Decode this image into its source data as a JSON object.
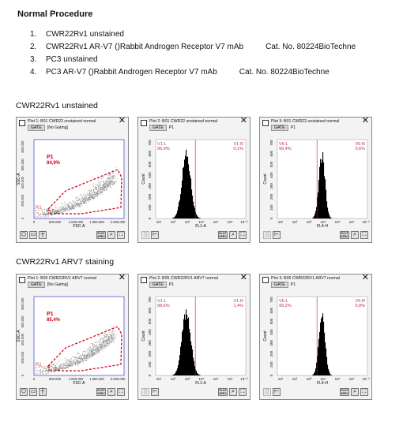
{
  "document": {
    "title": "Normal Procedure",
    "procedure": [
      {
        "num": "1.",
        "text": "CWR22Rv1 unstained",
        "cat": ""
      },
      {
        "num": "2.",
        "text": "CWR22Rv1 AR-V7 ()Rabbit Androgen Receptor V7 mAb",
        "cat": "Cat. No. 80224BioTechne"
      },
      {
        "num": "3.",
        "text": "PC3 unstained",
        "cat": ""
      },
      {
        "num": "4.",
        "text": "PC3 AR-V7 ()Rabbit Androgen Receptor V7 mAb",
        "cat": "Cat. No. 80224BioTechne"
      }
    ],
    "sections": [
      {
        "label": "CWR22Rv1 unstained"
      },
      {
        "label": "CWR22Rv1 ARV7 staining"
      }
    ]
  },
  "colors": {
    "gate": "#d0021b",
    "axis": "#1a1ac8",
    "hist": "#000000",
    "marker": "#c02040"
  },
  "panels": [
    {
      "title": "Plot 1: B01 CWR22 unstained normal",
      "gate_btn": "GATE",
      "gate_value": "[No Gating]",
      "chart_data": {
        "type": "scatter",
        "xlabel": "FSC-A",
        "ylabel": "SSC-A",
        "xticks": [
          "0",
          "500.000",
          "1.000.000",
          "1.500.000",
          "2.000.000"
        ],
        "yticks": [
          "0",
          "200.000",
          "400.000",
          "600.000",
          "800.000"
        ],
        "gates": [
          {
            "name": "P1",
            "value": "84,9%"
          },
          {
            "name": "R1",
            "value": ""
          }
        ]
      },
      "tools": {
        "spec": "PLOT SPEC"
      }
    },
    {
      "title": "Plot 2: B01 CWR22 unstained normal",
      "gate_btn": "GATE",
      "gate_value": "P1",
      "chart_data": {
        "type": "histogram",
        "xlabel": "FL1-A",
        "ylabel": "Count",
        "yticks": [
          "0",
          "100",
          "200",
          "300",
          "400",
          "500",
          "600",
          "700"
        ],
        "xticks": [
          "10¹",
          "10²",
          "10³",
          "10⁴",
          "10⁵",
          "10⁶",
          "10⁷.²"
        ],
        "markers": [
          {
            "name": "V1-L",
            "value": "99,9%"
          },
          {
            "name": "V1-R",
            "value": "0,1%"
          }
        ]
      },
      "tools": {
        "spec": "PLOT SPEC"
      }
    },
    {
      "title": "Plot 3: B01 CWR22 unstained normal",
      "gate_btn": "GATE",
      "gate_value": "P1",
      "chart_data": {
        "type": "histogram",
        "xlabel": "FL4-H",
        "ylabel": "Count",
        "yticks": [
          "0",
          "100",
          "200",
          "300",
          "400",
          "500",
          "600",
          "700"
        ],
        "xticks": [
          "10¹",
          "10²",
          "10³",
          "10⁴",
          "10⁵",
          "10⁶",
          "10⁷.²"
        ],
        "markers": [
          {
            "name": "V5-L",
            "value": "99,4%"
          },
          {
            "name": "V5-R",
            "value": "0,6%"
          }
        ]
      },
      "tools": {
        "spec": "PLOT SPEC"
      }
    },
    {
      "title": "Plot 1: B05 CWR22RV1 ARV7 normal",
      "gate_btn": "GATE",
      "gate_value": "[No Gating]",
      "chart_data": {
        "type": "scatter",
        "xlabel": "FSC-A",
        "ylabel": "SSC-A",
        "xticks": [
          "0",
          "500.000",
          "1.000.000",
          "1.500.000",
          "2.000.000"
        ],
        "yticks": [
          "0",
          "200.000",
          "400.000",
          "600.000",
          "800.000"
        ],
        "gates": [
          {
            "name": "P1",
            "value": "85,4%"
          },
          {
            "name": "R1",
            "value": ""
          }
        ]
      },
      "tools": {
        "spec": "PLOT SPEC"
      }
    },
    {
      "title": "Plot 2: B05 CWR22RV1 ARV7 normal",
      "gate_btn": "GATE",
      "gate_value": "P1",
      "chart_data": {
        "type": "histogram",
        "xlabel": "FL1-A",
        "ylabel": "Count",
        "yticks": [
          "0",
          "100",
          "200",
          "300",
          "400",
          "500",
          "600",
          "700"
        ],
        "xticks": [
          "10¹",
          "10²",
          "10³",
          "10⁴",
          "10⁵",
          "10⁶",
          "10⁷.²"
        ],
        "markers": [
          {
            "name": "V1-L",
            "value": "98,6%"
          },
          {
            "name": "V1-R",
            "value": "1,4%"
          }
        ]
      },
      "tools": {
        "spec": "PLOT SPEC"
      }
    },
    {
      "title": "Plot 3: B05 CWR22RV1 ARV7 normal",
      "gate_btn": "GATE",
      "gate_value": "P1",
      "chart_data": {
        "type": "histogram",
        "xlabel": "FL4-H",
        "ylabel": "Count",
        "yticks": [
          "0",
          "100",
          "200",
          "300",
          "400",
          "500",
          "600",
          "700"
        ],
        "xticks": [
          "10¹",
          "10²",
          "10³",
          "10⁴",
          "10⁵",
          "10⁶",
          "10⁷.²"
        ],
        "markers": [
          {
            "name": "V5-L",
            "value": "99,2%"
          },
          {
            "name": "V5-R",
            "value": "0,8%"
          }
        ]
      },
      "tools": {
        "spec": "PLOT SPEC"
      }
    }
  ]
}
